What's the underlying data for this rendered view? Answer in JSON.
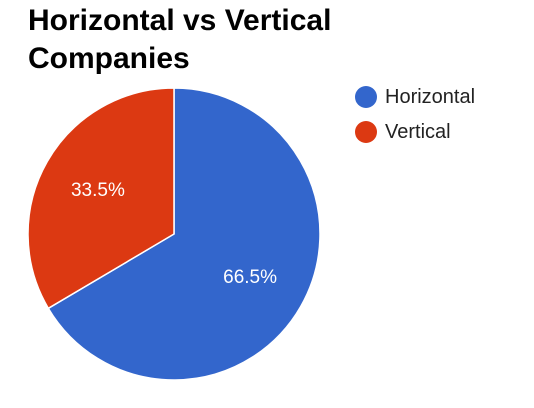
{
  "chart_data": {
    "type": "pie",
    "title": "Horizontal vs Vertical Companies",
    "legend_position": "right",
    "slices": [
      {
        "name": "Horizontal",
        "value": 66.5,
        "label": "66.5%",
        "color": "#3366cc"
      },
      {
        "name": "Vertical",
        "value": 33.5,
        "label": "33.5%",
        "color": "#dc3912"
      }
    ]
  }
}
